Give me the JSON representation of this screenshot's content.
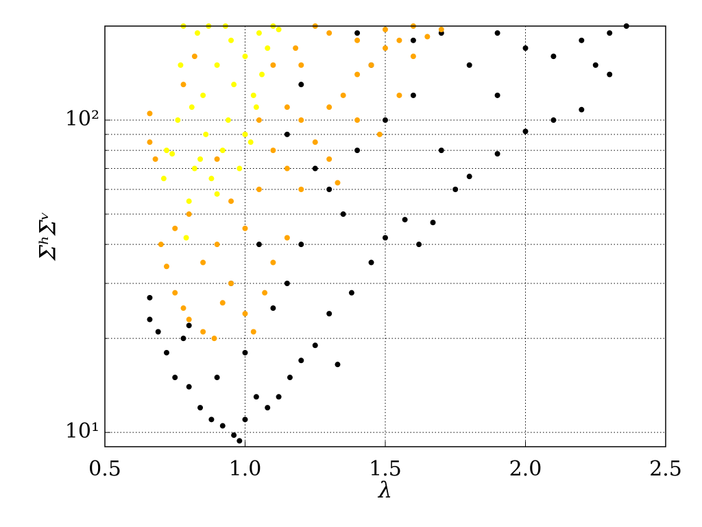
{
  "chart_data": {
    "type": "scatter",
    "x_label": "λ",
    "y_label": "ΣʰΣᵛ",
    "xlim": [
      0.5,
      2.5
    ],
    "xticks": [
      0.5,
      {
        "value": 1,
        "label": "1.0"
      },
      1.5,
      {
        "value": 2,
        "label": "2.0"
      },
      2.5
    ],
    "ylim": [
      9,
      200
    ],
    "yscale": "log",
    "yticks": [
      {
        "value": 10,
        "label": "10¹"
      },
      {
        "value": 100,
        "label": "10²"
      }
    ],
    "yminorticks": [
      20,
      30,
      40,
      50,
      60,
      70,
      80,
      90
    ],
    "grid": true,
    "series": [
      {
        "color": "#000000",
        "x": [
          0.66,
          0.66,
          0.69,
          0.72,
          0.75,
          0.78,
          0.8,
          0.84,
          0.88,
          0.92,
          0.96,
          0.98,
          1.0,
          1.04,
          1.08,
          1.12,
          1.16,
          1.2,
          1.25,
          1.3,
          1.33,
          1.38,
          1.45,
          1.5,
          1.57,
          1.62,
          1.67,
          1.75,
          1.8,
          1.9,
          2.0,
          2.1,
          2.2,
          2.3,
          2.36,
          2.3,
          2.2,
          2.0,
          1.8,
          1.6,
          1.4,
          1.3,
          1.2,
          1.1,
          1.0,
          0.9,
          0.8,
          0.95,
          1.05,
          1.15,
          1.5,
          1.7,
          1.9,
          2.1,
          1.35,
          1.25,
          1.45,
          1.6,
          1.15,
          1.2,
          1.4,
          2.25,
          1.9,
          1.7
        ],
        "values": [
          27,
          23,
          21,
          18,
          15,
          20,
          14,
          12,
          11,
          10.5,
          9.8,
          9.4,
          11,
          13,
          12,
          13,
          15,
          17,
          19,
          24,
          16.5,
          28,
          35,
          42,
          48,
          40,
          47,
          60,
          66,
          78,
          92,
          100,
          108,
          140,
          200,
          190,
          180,
          170,
          150,
          120,
          80,
          60,
          40,
          25,
          18,
          15,
          22,
          30,
          40,
          30,
          100,
          190,
          190,
          160,
          50,
          70,
          150,
          180,
          90,
          130,
          190,
          150,
          120,
          80
        ]
      },
      {
        "color": "#ffa500",
        "x": [
          0.66,
          0.66,
          0.68,
          0.7,
          0.72,
          0.75,
          0.78,
          0.8,
          0.85,
          0.89,
          0.92,
          0.95,
          1.0,
          1.03,
          1.07,
          1.1,
          1.15,
          1.2,
          1.25,
          1.3,
          1.33,
          1.35,
          1.4,
          1.45,
          1.5,
          1.55,
          1.6,
          1.65,
          1.7,
          1.6,
          1.5,
          1.4,
          1.3,
          1.25,
          1.2,
          1.15,
          1.1,
          1.05,
          1.0,
          0.95,
          0.9,
          0.85,
          0.8,
          0.75,
          0.9,
          1.0,
          1.1,
          1.2,
          1.3,
          1.15,
          1.05,
          0.78,
          0.82,
          1.18,
          1.4,
          1.48,
          1.55
        ],
        "values": [
          105,
          85,
          75,
          40,
          34,
          28,
          25,
          23,
          21,
          20,
          26,
          30,
          24,
          21,
          28,
          35,
          42,
          60,
          85,
          110,
          63,
          120,
          140,
          150,
          170,
          120,
          160,
          185,
          195,
          200,
          195,
          180,
          190,
          200,
          150,
          110,
          80,
          60,
          45,
          55,
          40,
          35,
          50,
          45,
          75,
          90,
          150,
          100,
          75,
          70,
          100,
          130,
          160,
          170,
          100,
          90,
          180
        ]
      },
      {
        "color": "#ffff00",
        "x": [
          0.71,
          0.72,
          0.74,
          0.76,
          0.77,
          0.79,
          0.8,
          0.82,
          0.83,
          0.85,
          0.86,
          0.88,
          0.9,
          0.92,
          0.94,
          0.96,
          0.98,
          1.0,
          1.02,
          1.04,
          1.06,
          1.08,
          1.1,
          1.12,
          1.0,
          0.95,
          0.9,
          0.87,
          0.78,
          0.81,
          0.93,
          1.05,
          0.84,
          1.03
        ],
        "values": [
          65,
          80,
          78,
          100,
          150,
          42,
          55,
          70,
          190,
          120,
          90,
          65,
          58,
          80,
          100,
          130,
          70,
          90,
          85,
          110,
          140,
          170,
          200,
          195,
          160,
          180,
          150,
          200,
          200,
          110,
          200,
          190,
          75,
          120
        ]
      }
    ]
  }
}
